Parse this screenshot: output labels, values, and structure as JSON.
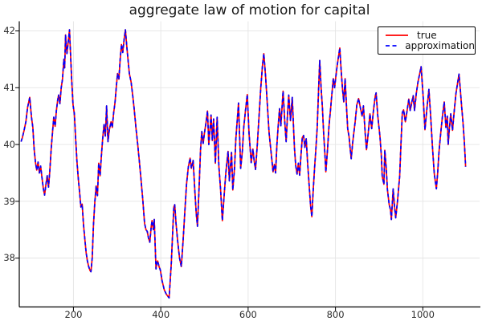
{
  "chart_data": {
    "type": "line",
    "title": "aggregate law of motion for capital",
    "xlabel": "",
    "ylabel": "",
    "x_ticks": [
      200,
      400,
      600,
      800,
      1000
    ],
    "y_ticks": [
      38,
      39,
      40,
      41,
      42
    ],
    "x_range": [
      76,
      1130
    ],
    "y_range": [
      37.14,
      42.17
    ],
    "grid": true,
    "legend_position": "top-right",
    "note": "Two series are visually coincident; blue dashed 'approximation' overlays red solid 'true'.",
    "x": [
      80,
      83,
      87,
      91,
      95,
      100,
      104,
      107,
      110,
      113,
      116,
      119,
      122,
      125,
      128,
      131,
      134,
      137,
      140,
      143,
      146,
      149,
      152,
      155,
      158,
      161,
      164,
      166,
      169,
      172,
      175,
      178,
      180,
      182,
      185,
      188,
      191,
      194,
      196,
      199,
      202,
      205,
      208,
      211,
      214,
      217,
      220,
      223,
      226,
      229,
      232,
      235,
      238,
      240,
      243,
      246,
      249,
      252,
      255,
      258,
      261,
      264,
      267,
      270,
      273,
      276,
      279,
      282,
      286,
      289,
      292,
      295,
      298,
      301,
      304,
      307,
      310,
      313,
      316,
      319,
      322,
      324,
      328,
      332,
      336,
      339,
      343,
      347,
      351,
      355,
      359,
      363,
      366,
      369,
      372,
      375,
      378,
      380,
      383,
      385,
      389,
      391,
      393,
      396,
      399,
      403,
      408,
      413,
      419,
      424,
      428,
      430,
      432,
      435,
      439,
      443,
      447,
      451,
      455,
      459,
      463,
      467,
      470,
      474,
      478,
      481,
      484,
      488,
      491,
      494,
      497,
      500,
      503,
      507,
      510,
      513,
      515,
      518,
      521,
      525,
      529,
      533,
      537,
      541,
      545,
      549,
      554,
      557,
      562,
      565,
      569,
      572,
      578,
      583,
      587,
      590,
      594,
      598,
      602,
      607,
      611,
      614,
      617,
      621,
      625,
      629,
      633,
      636,
      640,
      644,
      648,
      654,
      657,
      660,
      663,
      666,
      669,
      672,
      675,
      680,
      684,
      687,
      690,
      693,
      697,
      701,
      704,
      706,
      709,
      712,
      715,
      718,
      721,
      724,
      727,
      730,
      733,
      736,
      740,
      743,
      746,
      749,
      752,
      755,
      758,
      761,
      764,
      767,
      770,
      773,
      776,
      778,
      782,
      785,
      789,
      792,
      795,
      798,
      801,
      804,
      807,
      810,
      813,
      816,
      819,
      822,
      825,
      828,
      831,
      834,
      836,
      839,
      841,
      845,
      849,
      853,
      858,
      861,
      864,
      868,
      871,
      875,
      879,
      883,
      887,
      891,
      893,
      897,
      902,
      905,
      907,
      911,
      913,
      916,
      919,
      923,
      926,
      928,
      932,
      935,
      938,
      942,
      947,
      950,
      953,
      956,
      960,
      964,
      968,
      971,
      975,
      978,
      981,
      985,
      989,
      993,
      996,
      1001,
      1005,
      1009,
      1014,
      1018,
      1022,
      1026,
      1028,
      1031,
      1034,
      1037,
      1041,
      1045,
      1049,
      1053,
      1056,
      1058,
      1061,
      1064,
      1068,
      1072,
      1076,
      1080,
      1083,
      1086,
      1089,
      1092,
      1095,
      1098
    ],
    "series": [
      {
        "name": "true",
        "color": "#ff0000",
        "style": "solid",
        "y": [
          40.05,
          40.12,
          40.25,
          40.4,
          40.65,
          40.83,
          40.48,
          40.3,
          39.92,
          39.69,
          39.55,
          39.69,
          39.5,
          39.62,
          39.41,
          39.23,
          39.11,
          39.3,
          39.45,
          39.25,
          39.55,
          39.92,
          40.2,
          40.48,
          40.32,
          40.6,
          40.78,
          40.87,
          40.72,
          41.0,
          41.15,
          41.5,
          41.35,
          41.93,
          41.6,
          41.8,
          42.02,
          41.5,
          41.15,
          40.7,
          40.55,
          40.12,
          39.7,
          39.41,
          39.17,
          38.9,
          38.95,
          38.6,
          38.35,
          38.1,
          37.95,
          37.85,
          37.78,
          37.76,
          38.0,
          38.6,
          39.0,
          39.27,
          39.1,
          39.67,
          39.45,
          39.8,
          40.1,
          40.35,
          40.15,
          40.68,
          40.05,
          40.25,
          40.4,
          40.3,
          40.55,
          40.73,
          41.0,
          41.25,
          41.15,
          41.5,
          41.76,
          41.62,
          41.85,
          42.02,
          41.75,
          41.58,
          41.25,
          41.1,
          40.85,
          40.63,
          40.3,
          40.02,
          39.7,
          39.36,
          39.0,
          38.61,
          38.5,
          38.47,
          38.35,
          38.28,
          38.55,
          38.66,
          38.5,
          38.68,
          37.81,
          37.92,
          37.95,
          37.85,
          37.79,
          37.6,
          37.44,
          37.36,
          37.3,
          37.9,
          38.6,
          38.9,
          38.94,
          38.6,
          38.28,
          38.0,
          37.85,
          38.3,
          38.8,
          39.3,
          39.6,
          39.76,
          39.58,
          39.72,
          39.2,
          38.8,
          38.56,
          39.3,
          39.9,
          40.23,
          40.02,
          40.2,
          40.35,
          40.59,
          40.0,
          40.3,
          40.52,
          40.07,
          40.45,
          39.67,
          40.48,
          39.63,
          39.2,
          38.66,
          39.1,
          39.5,
          39.88,
          39.36,
          39.86,
          39.2,
          39.6,
          40.1,
          40.73,
          39.58,
          39.9,
          40.3,
          40.6,
          40.88,
          40.2,
          39.68,
          39.92,
          39.7,
          39.56,
          40.0,
          40.5,
          41.0,
          41.4,
          41.6,
          41.2,
          40.7,
          40.2,
          39.76,
          39.52,
          39.65,
          39.5,
          40.0,
          40.35,
          40.63,
          40.33,
          40.94,
          40.4,
          40.05,
          40.5,
          40.87,
          40.42,
          40.83,
          40.3,
          39.95,
          39.63,
          39.48,
          39.67,
          39.46,
          39.8,
          40.12,
          40.16,
          39.95,
          40.1,
          39.7,
          39.25,
          38.92,
          38.73,
          39.2,
          39.57,
          39.9,
          40.28,
          40.9,
          41.48,
          41.0,
          40.66,
          40.19,
          39.8,
          39.52,
          39.93,
          40.3,
          40.64,
          40.9,
          41.16,
          41.0,
          41.2,
          41.4,
          41.55,
          41.7,
          41.3,
          40.99,
          40.75,
          41.16,
          40.7,
          40.28,
          40.14,
          39.9,
          39.75,
          40.0,
          40.14,
          40.4,
          40.7,
          40.81,
          40.61,
          40.5,
          40.68,
          40.2,
          39.91,
          40.2,
          40.54,
          40.28,
          40.6,
          40.85,
          40.91,
          40.5,
          40.14,
          39.8,
          39.44,
          39.3,
          39.9,
          39.6,
          39.2,
          38.94,
          38.85,
          38.68,
          39.22,
          38.92,
          38.71,
          39.0,
          39.44,
          40.0,
          40.56,
          40.61,
          40.4,
          40.6,
          40.8,
          40.6,
          40.75,
          40.86,
          40.6,
          40.9,
          41.1,
          41.25,
          41.37,
          40.81,
          40.26,
          40.6,
          40.97,
          40.5,
          39.96,
          39.5,
          39.39,
          39.22,
          39.5,
          39.86,
          40.2,
          40.5,
          40.75,
          40.3,
          40.5,
          40.0,
          40.3,
          40.54,
          40.25,
          40.6,
          40.9,
          41.1,
          41.24,
          40.95,
          40.66,
          40.4,
          40.05,
          39.61
        ]
      },
      {
        "name": "approximation",
        "color": "#0000ff",
        "style": "dashed",
        "y": "same_as_series_0"
      }
    ]
  },
  "style_colors": {
    "grid": "#e5e5e5",
    "spine": "#000000",
    "tick_text": "#2d2d2d",
    "title_text": "#191919",
    "legend_border": "#000000",
    "background": "#ffffff"
  }
}
